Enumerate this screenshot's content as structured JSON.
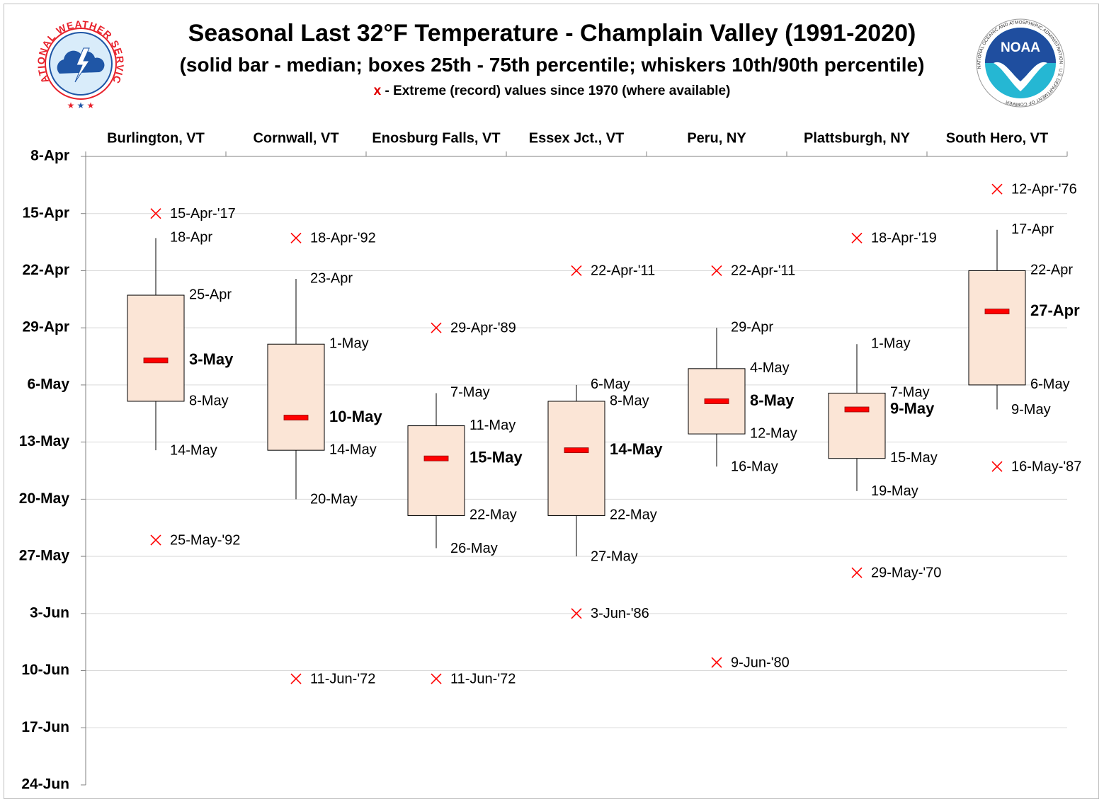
{
  "header": {
    "title_main": "Seasonal Last 32°F Temperature - Champlain Valley (1991-2020)",
    "title_sub": "(solid bar - median; boxes 25th - 75th percentile; whiskers 10th/90th percentile)",
    "note_marker": "x",
    "note_text": " - Extreme (record) values since 1970 (where available)"
  },
  "logos": {
    "left_text": "NATIONAL WEATHER SERVICE",
    "right_text_center": "NOAA",
    "right_ring_text": "NATIONAL OCEANIC AND ATMOSPHERIC ADMINISTRATION · U.S. DEPARTMENT OF COMMERCE"
  },
  "colors": {
    "box_fill": "#fbe5d6",
    "median": "#ff0000",
    "extreme_marker": "#ff0000",
    "gridline": "#d9d9d9",
    "nws_red": "#e8212b",
    "nws_blue": "#1f56a6",
    "noaa_blue": "#1f4e9f",
    "noaa_teal": "#25b7d3"
  },
  "chart_data": {
    "type": "boxplot",
    "y_axis": {
      "type": "date (day of year)",
      "inverted": true,
      "ticks": [
        "8-Apr",
        "15-Apr",
        "22-Apr",
        "29-Apr",
        "6-May",
        "13-May",
        "20-May",
        "27-May",
        "3-Jun",
        "10-Jun",
        "17-Jun",
        "24-Jun"
      ],
      "range": [
        "8-Apr",
        "24-Jun"
      ]
    },
    "categories": [
      "Burlington, VT",
      "Cornwall, VT",
      "Enosburg Falls, VT",
      "Essex Jct., VT",
      "Peru, NY",
      "Plattsburgh, NY",
      "South Hero, VT"
    ],
    "series": [
      {
        "station": "Burlington, VT",
        "p10": "18-Apr",
        "p25": "25-Apr",
        "median": "3-May",
        "p75": "8-May",
        "p90": "14-May",
        "record_early": "15-Apr-'17",
        "record_late": "25-May-'92"
      },
      {
        "station": "Cornwall, VT",
        "p10": "23-Apr",
        "p25": "1-May",
        "median": "10-May",
        "p75": "14-May",
        "p90": "20-May",
        "record_early": "18-Apr-'92",
        "record_late": "11-Jun-'72"
      },
      {
        "station": "Enosburg Falls, VT",
        "p10": "7-May",
        "p25": "11-May",
        "median": "15-May",
        "p75": "22-May",
        "p90": "26-May",
        "record_early": "29-Apr-'89",
        "record_late": "11-Jun-'72"
      },
      {
        "station": "Essex Jct., VT",
        "p10": "6-May",
        "p25": "8-May",
        "median": "14-May",
        "p75": "22-May",
        "p90": "27-May",
        "record_early": "22-Apr-'11",
        "record_late": "3-Jun-'86"
      },
      {
        "station": "Peru, NY",
        "p10": "29-Apr",
        "p25": "4-May",
        "median": "8-May",
        "p75": "12-May",
        "p90": "16-May",
        "record_early": "22-Apr-'11",
        "record_late": "9-Jun-'80"
      },
      {
        "station": "Plattsburgh, NY",
        "p10": "1-May",
        "p25": "7-May",
        "median": "9-May",
        "p75": "15-May",
        "p90": "19-May",
        "record_early": "18-Apr-'19",
        "record_late": "29-May-'70"
      },
      {
        "station": "South Hero, VT",
        "p10": "17-Apr",
        "p25": "22-Apr",
        "median": "27-Apr",
        "p75": "6-May",
        "p90": "9-May",
        "record_early": "12-Apr-'76",
        "record_late": "16-May-'87"
      }
    ]
  }
}
